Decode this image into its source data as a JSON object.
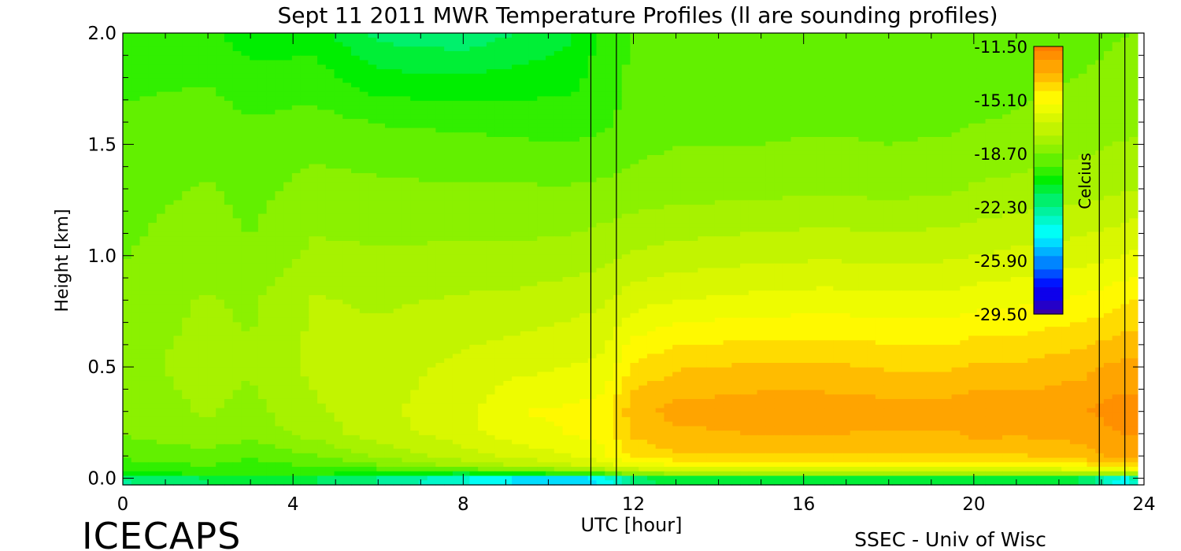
{
  "chart_data": {
    "type": "heatmap",
    "title": "Sept 11 2011 MWR Temperature Profiles (ll are sounding profiles)",
    "xlabel": "UTC [hour]",
    "ylabel": "Height [km]",
    "xlim": [
      0,
      24
    ],
    "ylim": [
      -0.03,
      2.0
    ],
    "x_ticks": [
      "0",
      "4",
      "8",
      "12",
      "16",
      "20",
      "24"
    ],
    "y_ticks": [
      "0.0",
      "0.5",
      "1.0",
      "1.5",
      "2.0"
    ],
    "x_tick_values": [
      0,
      4,
      8,
      12,
      16,
      20,
      24
    ],
    "y_tick_values": [
      0.0,
      0.5,
      1.0,
      1.5,
      2.0
    ],
    "x_minor_step": 1,
    "y_minor_step": 0.1,
    "colorbar": {
      "label": "Celcius",
      "ticks": [
        "-11.50",
        "-15.10",
        "-18.70",
        "-22.30",
        "-25.90",
        "-29.50"
      ],
      "tick_values": [
        -11.5,
        -15.1,
        -18.7,
        -22.3,
        -25.9,
        -29.5
      ],
      "range": [
        -29.5,
        -11.5
      ],
      "colors": [
        "#3a00a8",
        "#0000ff",
        "#0090ff",
        "#00ffff",
        "#00f08c",
        "#00ee00",
        "#80f000",
        "#c8f400",
        "#ffff00",
        "#ffb000",
        "#ff7a00"
      ]
    },
    "sounding_times": [
      11.0,
      11.6,
      22.95,
      23.55
    ],
    "temperature_field": {
      "hours": [
        0,
        2,
        3,
        4.5,
        6,
        8,
        9.3,
        10.5,
        11.3,
        12,
        13,
        15,
        16.5,
        18,
        19.5,
        20,
        21,
        22.5,
        23.5,
        24
      ],
      "heights_km": [
        0.0,
        0.02,
        0.05,
        0.1,
        0.2,
        0.3,
        0.5,
        0.8,
        1.0,
        1.3,
        1.6,
        2.0
      ],
      "values_celsius": [
        [
          -22.3,
          -21.5,
          -21.5,
          -21.5,
          -22.3,
          -23.5,
          -24.5,
          -25.0,
          -24.0,
          -22.0,
          -21.0,
          -21.0,
          -21.0,
          -21.0,
          -21.0,
          -21.0,
          -21.0,
          -21.5,
          -24.0,
          -22.0
        ],
        [
          -20.5,
          -20.0,
          -20.0,
          -20.0,
          -20.5,
          -21.0,
          -20.5,
          -20.0,
          -19.5,
          -18.5,
          -18.0,
          -18.0,
          -18.0,
          -18.0,
          -18.0,
          -18.0,
          -18.0,
          -18.0,
          -18.0,
          -17.5
        ],
        [
          -19.8,
          -19.5,
          -19.8,
          -19.5,
          -19.0,
          -18.0,
          -17.5,
          -17.0,
          -16.5,
          -16.0,
          -15.5,
          -15.5,
          -15.5,
          -15.5,
          -15.5,
          -15.5,
          -15.5,
          -15.0,
          -14.5,
          -14.0
        ],
        [
          -19.3,
          -19.0,
          -19.4,
          -18.8,
          -18.0,
          -17.0,
          -16.5,
          -16.0,
          -15.5,
          -14.5,
          -14.0,
          -14.0,
          -14.0,
          -14.0,
          -14.0,
          -14.0,
          -14.0,
          -13.5,
          -13.0,
          -13.0
        ],
        [
          -18.7,
          -18.3,
          -18.5,
          -17.8,
          -17.0,
          -16.3,
          -15.5,
          -15.3,
          -15.0,
          -13.8,
          -13.4,
          -13.2,
          -13.2,
          -13.3,
          -13.3,
          -13.0,
          -13.1,
          -13.0,
          -12.5,
          -12.5
        ],
        [
          -18.5,
          -18.0,
          -18.3,
          -17.5,
          -16.9,
          -16.2,
          -15.3,
          -15.2,
          -15.0,
          -13.5,
          -13.0,
          -12.8,
          -12.8,
          -12.9,
          -12.9,
          -12.6,
          -12.8,
          -12.6,
          -12.2,
          -12.3
        ],
        [
          -18.3,
          -17.8,
          -18.0,
          -17.2,
          -17.0,
          -16.5,
          -16.2,
          -16.0,
          -15.8,
          -14.5,
          -14.0,
          -13.8,
          -13.8,
          -14.0,
          -14.0,
          -13.8,
          -13.8,
          -13.5,
          -13.0,
          -13.0
        ],
        [
          -18.5,
          -18.0,
          -18.2,
          -17.3,
          -17.5,
          -17.3,
          -17.2,
          -17.0,
          -16.8,
          -16.3,
          -16.0,
          -15.8,
          -15.7,
          -15.8,
          -15.8,
          -15.6,
          -15.5,
          -15.2,
          -14.8,
          -14.5
        ],
        [
          -18.8,
          -18.4,
          -18.7,
          -17.9,
          -18.0,
          -17.9,
          -17.9,
          -17.8,
          -17.6,
          -17.3,
          -17.1,
          -16.9,
          -16.8,
          -16.9,
          -16.8,
          -16.7,
          -16.5,
          -16.3,
          -16.0,
          -15.8
        ],
        [
          -19.0,
          -18.7,
          -19.0,
          -18.5,
          -18.6,
          -18.7,
          -18.7,
          -18.7,
          -18.6,
          -18.5,
          -18.4,
          -18.3,
          -18.2,
          -18.3,
          -18.2,
          -18.0,
          -17.9,
          -17.7,
          -17.5,
          -17.3
        ],
        [
          -19.3,
          -19.1,
          -19.4,
          -19.2,
          -19.5,
          -19.6,
          -19.7,
          -19.8,
          -19.6,
          -19.2,
          -19.0,
          -19.0,
          -18.9,
          -19.0,
          -18.9,
          -18.8,
          -18.7,
          -18.5,
          -18.3,
          -18.2
        ],
        [
          -20.0,
          -20.0,
          -20.5,
          -20.5,
          -21.8,
          -22.0,
          -21.5,
          -21.0,
          -20.0,
          -19.4,
          -19.3,
          -19.3,
          -19.4,
          -19.4,
          -19.4,
          -19.3,
          -19.2,
          -19.0,
          -18.8,
          -18.7
        ]
      ]
    }
  },
  "footer": {
    "left_logo": "ICECAPS",
    "right_credit": "SSEC - Univ of Wisc"
  },
  "colors": {
    "axes": "#000000",
    "background": "#ffffff"
  }
}
